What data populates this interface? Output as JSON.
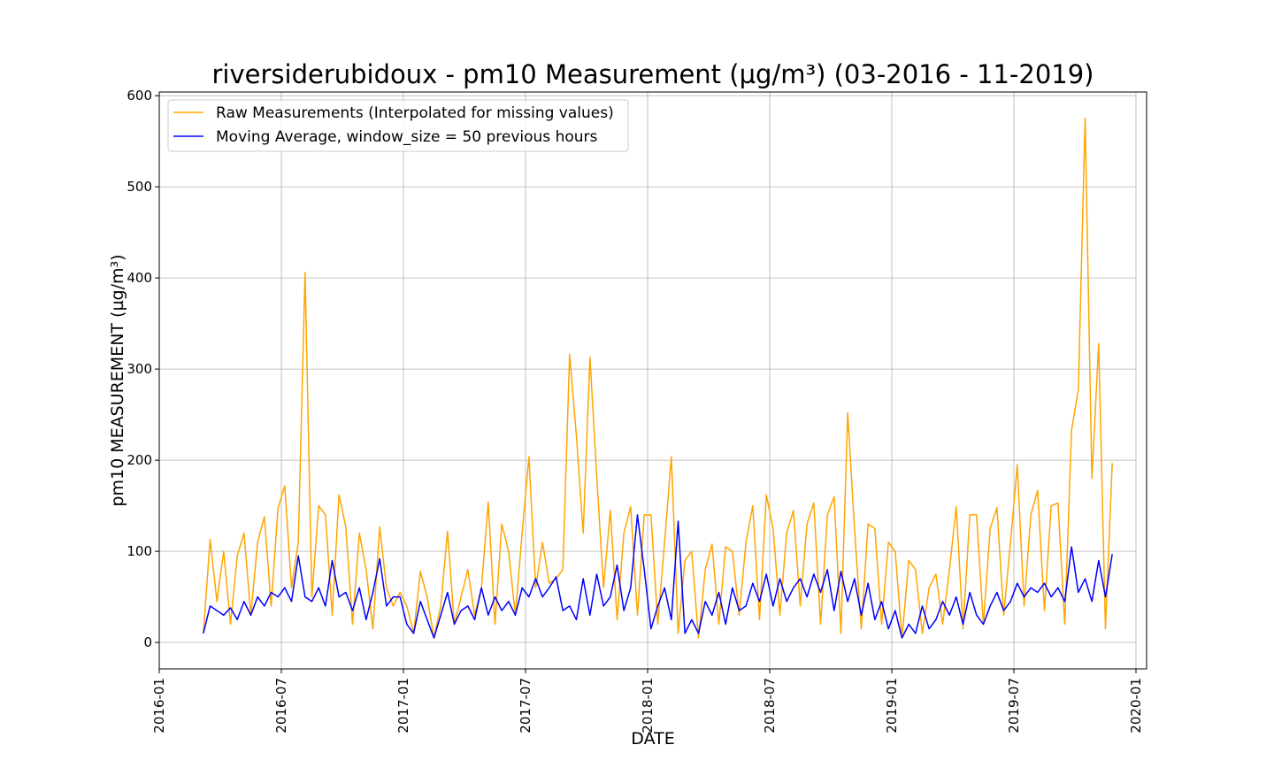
{
  "chart_data": {
    "type": "line",
    "title": "riversiderubidoux - pm10 Measurement (µg/m³) (03-2016 - 11-2019)",
    "x_label": "DATE",
    "y_label": "pm10 MEASUREMENT (µg/m³)",
    "x": [
      "2016-03",
      "2016-03",
      "2016-03",
      "2016-04",
      "2016-04",
      "2016-04",
      "2016-05",
      "2016-05",
      "2016-05",
      "2016-06",
      "2016-06",
      "2016-06",
      "2016-07",
      "2016-07",
      "2016-07",
      "2016-08",
      "2016-08",
      "2016-08",
      "2016-09",
      "2016-09",
      "2016-09",
      "2016-10",
      "2016-10",
      "2016-10",
      "2016-11",
      "2016-11",
      "2016-11",
      "2016-12",
      "2016-12",
      "2016-12",
      "2017-01",
      "2017-01",
      "2017-01",
      "2017-02",
      "2017-02",
      "2017-02",
      "2017-03",
      "2017-03",
      "2017-03",
      "2017-04",
      "2017-04",
      "2017-04",
      "2017-05",
      "2017-05",
      "2017-05",
      "2017-06",
      "2017-06",
      "2017-06",
      "2017-07",
      "2017-07",
      "2017-07",
      "2017-08",
      "2017-08",
      "2017-08",
      "2017-09",
      "2017-09",
      "2017-09",
      "2017-10",
      "2017-10",
      "2017-10",
      "2017-11",
      "2017-11",
      "2017-11",
      "2017-12",
      "2017-12",
      "2017-12",
      "2018-01",
      "2018-01",
      "2018-01",
      "2018-02",
      "2018-02",
      "2018-02",
      "2018-03",
      "2018-03",
      "2018-03",
      "2018-04",
      "2018-04",
      "2018-04",
      "2018-05",
      "2018-05",
      "2018-05",
      "2018-06",
      "2018-06",
      "2018-06",
      "2018-07",
      "2018-07",
      "2018-07",
      "2018-08",
      "2018-08",
      "2018-08",
      "2018-09",
      "2018-09",
      "2018-09",
      "2018-10",
      "2018-10",
      "2018-10",
      "2018-11",
      "2018-11",
      "2018-11",
      "2018-12",
      "2018-12",
      "2018-12",
      "2019-01",
      "2019-01",
      "2019-01",
      "2019-02",
      "2019-02",
      "2019-02",
      "2019-03",
      "2019-03",
      "2019-03",
      "2019-04",
      "2019-04",
      "2019-04",
      "2019-05",
      "2019-05",
      "2019-05",
      "2019-06",
      "2019-06",
      "2019-06",
      "2019-07",
      "2019-07",
      "2019-07",
      "2019-08",
      "2019-08",
      "2019-08",
      "2019-09",
      "2019-09",
      "2019-09",
      "2019-10",
      "2019-10",
      "2019-10",
      "2019-11",
      "2019-11",
      "2019-11"
    ],
    "series": [
      {
        "name": "Raw Measurements (Interpolated for missing values)",
        "color": "#ffa500",
        "values": [
          10,
          113,
          45,
          100,
          20,
          95,
          120,
          30,
          110,
          138,
          40,
          147,
          172,
          60,
          110,
          406,
          50,
          150,
          140,
          30,
          162,
          127,
          20,
          120,
          80,
          15,
          127,
          60,
          40,
          55,
          40,
          10,
          78,
          50,
          5,
          40,
          122,
          20,
          50,
          80,
          30,
          60,
          154,
          20,
          130,
          100,
          30,
          120,
          204,
          60,
          110,
          65,
          70,
          80,
          316,
          227,
          120,
          313,
          182,
          60,
          145,
          25,
          120,
          149,
          30,
          140,
          140,
          20,
          110,
          204,
          10,
          90,
          100,
          5,
          80,
          108,
          20,
          105,
          100,
          30,
          110,
          150,
          25,
          162,
          125,
          30,
          120,
          145,
          40,
          130,
          153,
          20,
          140,
          160,
          10,
          252,
          125,
          15,
          130,
          125,
          20,
          110,
          100,
          5,
          90,
          80,
          10,
          60,
          75,
          20,
          80,
          149,
          15,
          140,
          140,
          20,
          125,
          148,
          30,
          110,
          195,
          40,
          140,
          167,
          35,
          150,
          153,
          20,
          233,
          277,
          575,
          180,
          328,
          15,
          197
        ]
      },
      {
        "name": "Moving Average, window_size = 50 previous hours",
        "color": "#0000ff",
        "values": [
          10,
          40,
          35,
          30,
          38,
          25,
          45,
          30,
          50,
          40,
          55,
          50,
          60,
          45,
          95,
          50,
          45,
          60,
          40,
          90,
          50,
          55,
          35,
          60,
          25,
          55,
          92,
          40,
          50,
          50,
          20,
          10,
          45,
          25,
          5,
          30,
          55,
          20,
          35,
          40,
          25,
          60,
          30,
          50,
          35,
          45,
          30,
          60,
          50,
          70,
          50,
          60,
          72,
          35,
          40,
          25,
          70,
          30,
          75,
          40,
          50,
          85,
          35,
          60,
          140,
          80,
          15,
          40,
          60,
          25,
          133,
          10,
          25,
          10,
          45,
          30,
          55,
          20,
          60,
          35,
          40,
          65,
          45,
          75,
          40,
          70,
          45,
          60,
          70,
          50,
          75,
          55,
          80,
          35,
          78,
          45,
          70,
          30,
          65,
          25,
          45,
          15,
          35,
          5,
          20,
          10,
          40,
          15,
          25,
          45,
          30,
          50,
          20,
          55,
          30,
          20,
          40,
          55,
          35,
          45,
          65,
          50,
          60,
          55,
          65,
          50,
          60,
          45,
          105,
          55,
          70,
          45,
          90,
          50,
          97
        ]
      }
    ],
    "xlim": [
      "2016-01",
      "2020-01"
    ],
    "xticks": [
      "2016-01",
      "2016-07",
      "2017-01",
      "2017-07",
      "2018-01",
      "2018-07",
      "2019-01",
      "2019-07",
      "2020-01"
    ],
    "ylim": [
      -29,
      604
    ],
    "yticks": [
      0,
      100,
      200,
      300,
      400,
      500,
      600
    ],
    "grid": true,
    "legend": "upper left"
  }
}
